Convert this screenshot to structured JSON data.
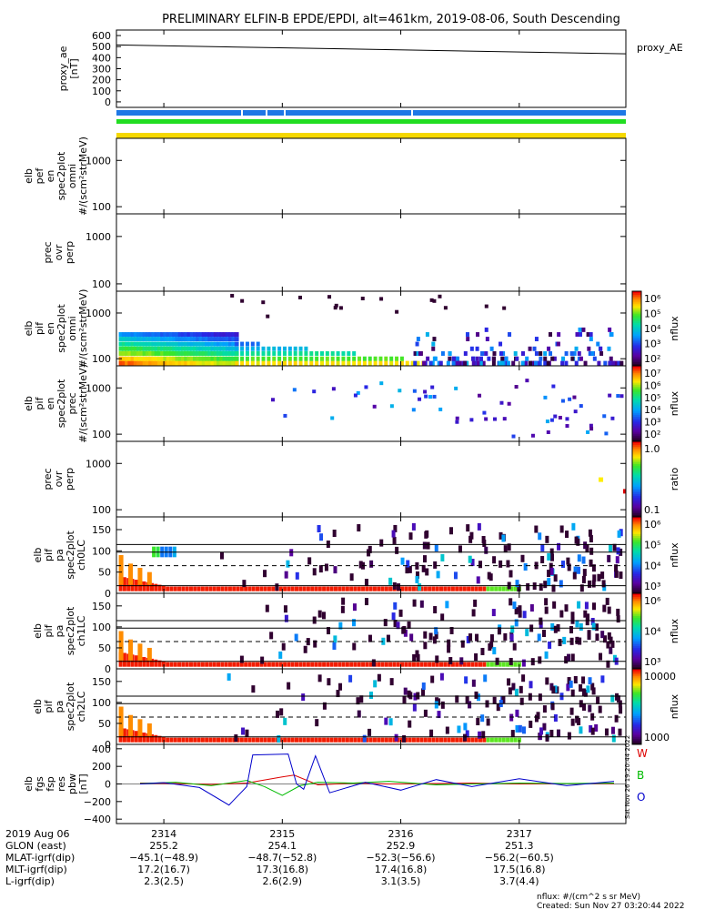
{
  "title": "PRELIMINARY ELFIN-B EPDE/EPDI, alt=461km, 2019-08-06, South Descending",
  "colors": {
    "bar_blue": "#1e78e6",
    "bar_green": "#22dd22",
    "bar_yellow": "#f5d800",
    "vec_red": "#dd0000",
    "vec_green": "#00bb00",
    "vec_blue": "#0000cc"
  },
  "chart_data": [
    {
      "type": "line",
      "panel": "proxy_ae",
      "ylabel_lines": [
        "proxy_ae",
        "[nT]"
      ],
      "yticks": [
        "600",
        "500",
        "400",
        "300",
        "200",
        "100",
        "0"
      ],
      "ylim": [
        -50,
        650
      ],
      "legend": "proxy_AE",
      "x": [
        "2313.6",
        "2317.9"
      ],
      "values": [
        515,
        435
      ]
    },
    {
      "type": "bar",
      "panel": "state-bars",
      "series": [
        {
          "name": "",
          "color": "#1e78e6"
        },
        {
          "name": "",
          "color": "#22dd22"
        },
        {
          "name": "",
          "color": "#f5d800"
        }
      ]
    },
    {
      "type": "heatmap",
      "panel": "elb-pef-en-spec2plot-omni",
      "ylabel_lines": [
        "elb",
        "pef",
        "en",
        "spec2plot",
        "omni",
        "#/(scm²strMeV)"
      ],
      "yscale": "log",
      "yticks": [
        "1000",
        "100"
      ],
      "values": []
    },
    {
      "type": "heatmap",
      "panel": "prec-ovr-perp-1",
      "ylabel_lines": [
        "prec",
        "ovr",
        "perp"
      ],
      "yscale": "log",
      "yticks": [
        "1000",
        "100"
      ],
      "values": []
    },
    {
      "type": "heatmap",
      "panel": "elb-pif-en-spec2plot-omni",
      "ylabel_lines": [
        "elb",
        "pif",
        "en",
        "spec2plot",
        "omni",
        "#/(scm²strMeV)"
      ],
      "yscale": "log",
      "yticks": [
        "1000",
        "100"
      ],
      "colorbar": {
        "label": "nflux",
        "ticks": [
          "10⁶",
          "10⁵",
          "10⁴",
          "10³",
          "10²"
        ]
      }
    },
    {
      "type": "heatmap",
      "panel": "elb-pif-en-spec2plot-prec",
      "ylabel_lines": [
        "elb",
        "pif",
        "en",
        "spec2plot",
        "prec",
        "#/(scm²strMeV)"
      ],
      "yscale": "log",
      "yticks": [
        "1000",
        "100"
      ],
      "colorbar": {
        "label": "nflux",
        "ticks": [
          "10⁷",
          "10⁶",
          "10⁵",
          "10⁴",
          "10³",
          "10²"
        ]
      }
    },
    {
      "type": "heatmap",
      "panel": "prec-ovr-perp-2",
      "ylabel_lines": [
        "prec",
        "ovr",
        "perp"
      ],
      "yscale": "log",
      "yticks": [
        "1000",
        "100"
      ],
      "colorbar": {
        "label": "ratio",
        "ticks": [
          "1.0",
          "0.1"
        ]
      }
    },
    {
      "type": "heatmap",
      "panel": "elb-pif-pa-spec2plot-ch0LC",
      "ylabel_lines": [
        "elb",
        "pif",
        "pa",
        "spec2plot",
        "ch0LC"
      ],
      "yticks": [
        "150",
        "100",
        "50",
        "0"
      ],
      "ylim": [
        0,
        180
      ],
      "colorbar": {
        "label": "nflux",
        "ticks": [
          "10⁶",
          "10⁵",
          "10⁴",
          "10³"
        ]
      }
    },
    {
      "type": "heatmap",
      "panel": "elb-pif-pa-spec2plot-ch1LC",
      "ylabel_lines": [
        "elb",
        "pif",
        "pa",
        "spec2plot",
        "ch1LC"
      ],
      "yticks": [
        "150",
        "100",
        "50",
        "0"
      ],
      "ylim": [
        0,
        180
      ],
      "colorbar": {
        "label": "nflux",
        "ticks": [
          "10⁶",
          "10⁴",
          "10³"
        ]
      }
    },
    {
      "type": "heatmap",
      "panel": "elb-pif-pa-spec2plot-ch2LC",
      "ylabel_lines": [
        "elb",
        "pif",
        "pa",
        "spec2plot",
        "ch2LC"
      ],
      "yticks": [
        "150",
        "100",
        "50",
        "0"
      ],
      "ylim": [
        0,
        180
      ],
      "colorbar": {
        "label": "nflux",
        "ticks": [
          "10000",
          "1000"
        ]
      }
    },
    {
      "type": "line",
      "panel": "elb-fgs-fsp-res-pbw",
      "ylabel_lines": [
        "elb",
        "fgs",
        "fsp",
        "res",
        "pbw",
        "[nT]"
      ],
      "yticks": [
        "400",
        "200",
        "0",
        "−200",
        "−400"
      ],
      "ylim": [
        -450,
        450
      ],
      "legend": [
        "W",
        "B",
        "O"
      ],
      "series": [
        {
          "name": "W",
          "color": "#dd0000",
          "x": [
            2313.8,
            2314.1,
            2314.4,
            2314.7,
            2315.0,
            2315.1,
            2315.3,
            2315.6,
            2315.9,
            2316.3,
            2316.6,
            2317.0,
            2317.4,
            2317.8
          ],
          "values": [
            10,
            5,
            -5,
            10,
            80,
            100,
            -10,
            10,
            0,
            5,
            10,
            0,
            5,
            5
          ]
        },
        {
          "name": "B",
          "color": "#00bb00",
          "x": [
            2313.8,
            2314.1,
            2314.4,
            2314.7,
            2314.85,
            2315.0,
            2315.15,
            2315.3,
            2315.6,
            2315.9,
            2316.3,
            2316.6,
            2317.0,
            2317.4,
            2317.8
          ],
          "values": [
            5,
            20,
            -20,
            40,
            -30,
            -130,
            -20,
            20,
            10,
            30,
            -10,
            0,
            10,
            5,
            10
          ]
        },
        {
          "name": "O",
          "color": "#0000cc",
          "x": [
            2313.8,
            2314.0,
            2314.3,
            2314.55,
            2314.7,
            2314.75,
            2315.05,
            2315.12,
            2315.18,
            2315.28,
            2315.4,
            2315.7,
            2316.0,
            2316.3,
            2316.6,
            2317.0,
            2317.4,
            2317.8
          ],
          "values": [
            0,
            15,
            -40,
            -240,
            -30,
            330,
            340,
            0,
            -60,
            320,
            -100,
            20,
            -70,
            50,
            -30,
            60,
            -20,
            30
          ]
        }
      ]
    }
  ],
  "xaxis": {
    "row_labels": [
      "2019 Aug 06",
      "GLON (east)",
      "MLAT-igrf(dip)",
      "MLT-igrf(dip)",
      "L-igrf(dip)"
    ],
    "ticks": [
      {
        "label": "2314",
        "glon": "255.2",
        "mlat": "−45.1(−48.9)",
        "mlt": "17.2(16.7)",
        "lshell": "2.3(2.5)"
      },
      {
        "label": "2315",
        "glon": "254.1",
        "mlat": "−48.7(−52.8)",
        "mlt": "17.3(16.8)",
        "lshell": "2.6(2.9)"
      },
      {
        "label": "2316",
        "glon": "252.9",
        "mlat": "−52.3(−56.6)",
        "mlt": "17.4(16.8)",
        "lshell": "3.1(3.5)"
      },
      {
        "label": "2317",
        "glon": "251.3",
        "mlat": "−56.2(−60.5)",
        "mlt": "17.5(16.8)",
        "lshell": "3.7(4.4)"
      }
    ]
  },
  "footer": {
    "nflux_note": "nflux: #/(cm^2 s sr MeV)",
    "created": "Created: Sun Nov 27 03:20:44 2022",
    "side_stamp": "Sat Nov 26 19:20:44 2022"
  }
}
